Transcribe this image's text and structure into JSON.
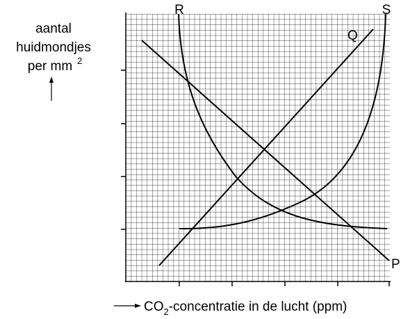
{
  "y_label": {
    "lines": [
      "aantal",
      "huidmondjes",
      "per mm"
    ],
    "superscript": "2"
  },
  "x_label": {
    "parts": [
      "CO",
      "2",
      "-concentratie in de lucht (ppm)"
    ]
  },
  "curves": {
    "P": "P",
    "Q": "Q",
    "R": "R",
    "S": "S"
  }
}
